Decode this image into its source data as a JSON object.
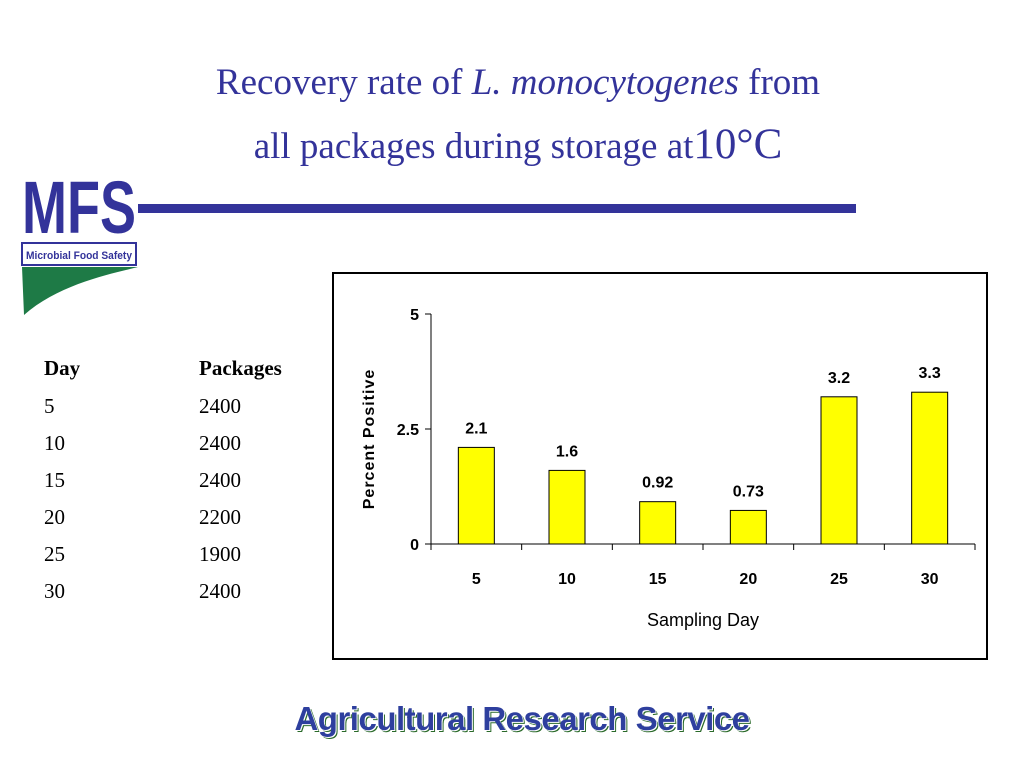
{
  "slide": {
    "title_line1_pre": "Recovery rate of ",
    "title_line1_italic": "L. monocytogenes",
    "title_line1_post": " from",
    "title_line2_pre": "all packages during storage at",
    "title_line2_big": "10°C",
    "logo_text": "MFS",
    "logo_subtitle": "Microbial Food Safety",
    "footer": "Agricultural Research Service",
    "colors": {
      "title": "#33339a",
      "bar": "#ffff00",
      "logo_green": "#1e7a46"
    }
  },
  "table": {
    "headers": [
      "Day",
      "Packages"
    ],
    "rows": [
      [
        "5",
        "2400"
      ],
      [
        "10",
        "2400"
      ],
      [
        "15",
        "2400"
      ],
      [
        "20",
        "2200"
      ],
      [
        "25",
        "1900"
      ],
      [
        "30",
        "2400"
      ]
    ]
  },
  "chart_data": {
    "type": "bar",
    "categories": [
      "5",
      "10",
      "15",
      "20",
      "25",
      "30"
    ],
    "values": [
      2.1,
      1.6,
      0.92,
      0.73,
      3.2,
      3.3
    ],
    "data_labels": [
      "2.1",
      "1.6",
      "0.92",
      "0.73",
      "3.2",
      "3.3"
    ],
    "yticks": [
      "0",
      "2.5",
      "5"
    ],
    "ytick_values": [
      0,
      2.5,
      5
    ],
    "ylim": [
      0,
      5
    ],
    "xlabel": "Sampling Day",
    "ylabel": "Percent Positive",
    "grid": false,
    "legend": "none"
  }
}
